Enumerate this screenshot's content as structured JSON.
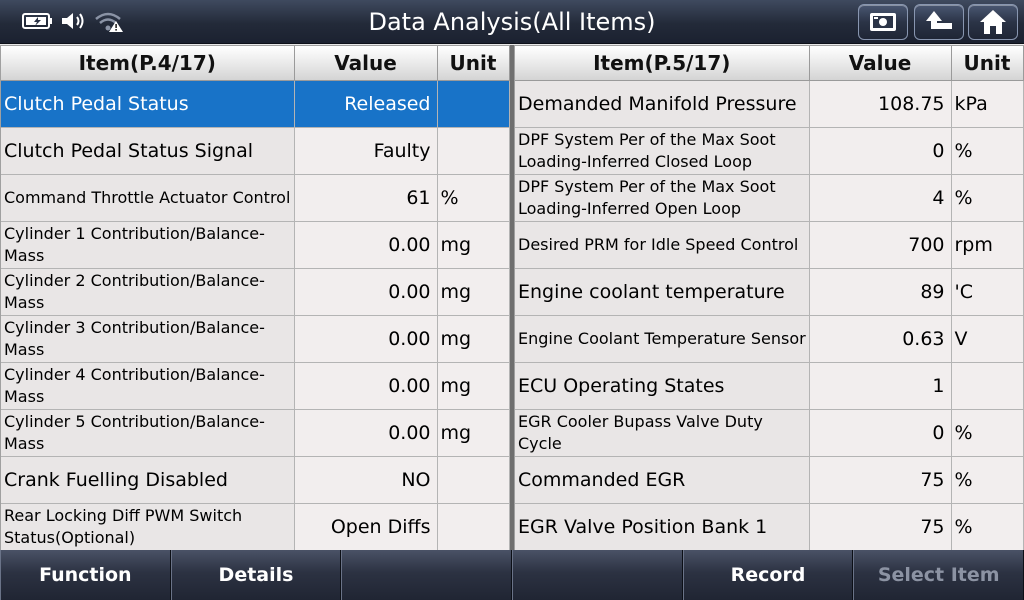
{
  "title": "Data Analysis(All Items)",
  "colors": {
    "selected_row": "#1873c8",
    "title_bar": "#232a39",
    "header": "#e6e6e6"
  },
  "status_bar": {
    "icons": [
      "battery-icon",
      "volume-icon",
      "wifi-warning-icon"
    ]
  },
  "nav_buttons": [
    {
      "name": "screenshot-button",
      "icon": "camera-card-icon"
    },
    {
      "name": "back-button",
      "icon": "back-arrow-icon"
    },
    {
      "name": "home-button",
      "icon": "home-icon"
    }
  ],
  "left_table": {
    "headers": {
      "item": "Item(P.4/17)",
      "value": "Value",
      "unit": "Unit"
    },
    "rows": [
      {
        "name": "Clutch Pedal Status",
        "value": "Released",
        "unit": "",
        "selected": true
      },
      {
        "name": "Clutch Pedal Status Signal",
        "value": "Faulty",
        "unit": ""
      },
      {
        "name": "Command Throttle Actuator Control",
        "value": "61",
        "unit": "%"
      },
      {
        "name": "Cylinder 1 Contribution/Balance-Mass",
        "value": "0.00",
        "unit": "mg"
      },
      {
        "name": "Cylinder 2 Contribution/Balance-Mass",
        "value": "0.00",
        "unit": "mg"
      },
      {
        "name": "Cylinder 3 Contribution/Balance-Mass",
        "value": "0.00",
        "unit": "mg"
      },
      {
        "name": "Cylinder 4 Contribution/Balance-Mass",
        "value": "0.00",
        "unit": "mg"
      },
      {
        "name": "Cylinder 5 Contribution/Balance-Mass",
        "value": "0.00",
        "unit": "mg"
      },
      {
        "name": "Crank Fuelling Disabled",
        "value": "NO",
        "unit": ""
      },
      {
        "name": "Rear Locking Diff PWM Switch Status(Optional)",
        "value": "Open Diffs",
        "unit": ""
      }
    ]
  },
  "right_table": {
    "headers": {
      "item": "Item(P.5/17)",
      "value": "Value",
      "unit": "Unit"
    },
    "rows": [
      {
        "name": "Demanded Manifold Pressure",
        "value": "108.75",
        "unit": "kPa"
      },
      {
        "name": "DPF System Per of the Max Soot Loading-Inferred Closed Loop",
        "value": "0",
        "unit": "%"
      },
      {
        "name": "DPF System Per of the Max Soot Loading-Inferred Open Loop",
        "value": "4",
        "unit": "%"
      },
      {
        "name": "Desired PRM for Idle Speed Control",
        "value": "700",
        "unit": "rpm"
      },
      {
        "name": "Engine coolant temperature",
        "value": "89",
        "unit": "'C"
      },
      {
        "name": "Engine Coolant Temperature Sensor",
        "value": "0.63",
        "unit": "V"
      },
      {
        "name": "ECU Operating States",
        "value": "1",
        "unit": ""
      },
      {
        "name": "EGR Cooler Bupass Valve Duty Cycle",
        "value": "0",
        "unit": "%"
      },
      {
        "name": "Commanded EGR",
        "value": "75",
        "unit": "%"
      },
      {
        "name": "EGR Valve Position Bank 1",
        "value": "75",
        "unit": "%"
      }
    ]
  },
  "toolbar": {
    "buttons": [
      {
        "label": "Function",
        "enabled": true
      },
      {
        "label": "Details",
        "enabled": true
      },
      {
        "label": "",
        "enabled": true
      },
      {
        "label": "",
        "enabled": true
      },
      {
        "label": "Record",
        "enabled": true
      },
      {
        "label": "Select Item",
        "enabled": false
      }
    ]
  }
}
